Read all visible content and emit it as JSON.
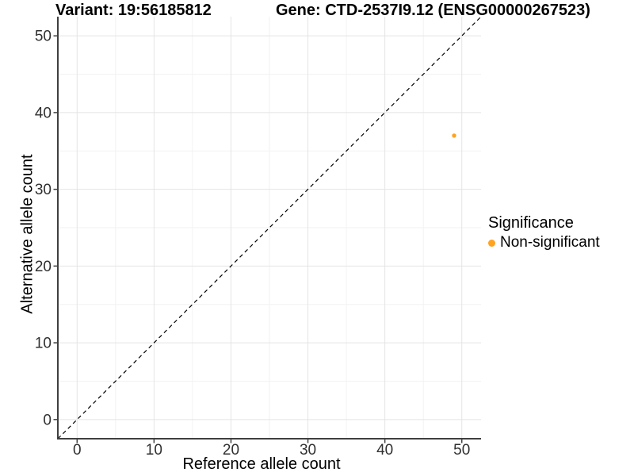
{
  "chart_data": {
    "type": "scatter",
    "title_left": "Variant: 19:56185812",
    "title_right": "Gene: CTD-2537I9.12 (ENSG00000267523)",
    "xlabel": "Reference allele count",
    "ylabel": "Alternative allele count",
    "xlim": [
      -2.5,
      52.5
    ],
    "ylim": [
      -2.5,
      52.5
    ],
    "xticks": [
      0,
      10,
      20,
      30,
      40,
      50
    ],
    "yticks": [
      0,
      10,
      20,
      30,
      40,
      50
    ],
    "x_minor": [
      5,
      15,
      25,
      35,
      45
    ],
    "y_minor": [
      5,
      15,
      25,
      35,
      45
    ],
    "grid": "major+minor",
    "points": [
      {
        "x": 49,
        "y": 37,
        "series": "Non-significant",
        "color": "#FFA320"
      }
    ],
    "identity_line": {
      "x1": -2.5,
      "y1": -2.5,
      "x2": 52.5,
      "y2": 52.5,
      "style": "dashed",
      "color": "#000000"
    },
    "legend": {
      "title": "Significance",
      "position": "right",
      "entries": [
        {
          "label": "Non-significant",
          "color": "#FFA320"
        }
      ]
    }
  },
  "colors": {
    "background": "#FFFFFF",
    "grid_major": "#E4E4E4",
    "grid_minor": "#F2F2F2",
    "axis": "#3F3F3F",
    "tick_text": "#303030",
    "point": "#FFA320"
  }
}
